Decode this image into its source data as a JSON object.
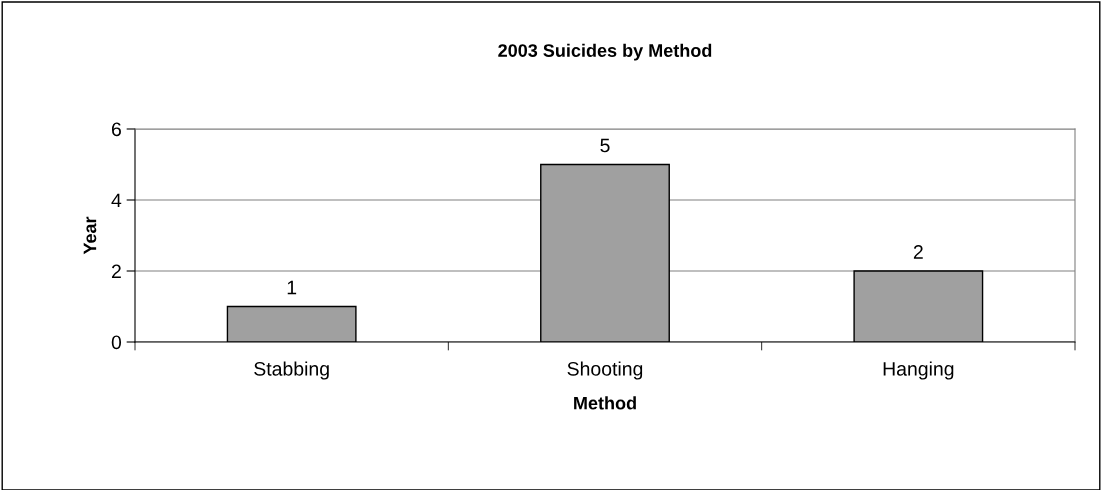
{
  "chart_data": {
    "type": "bar",
    "title": "2003 Suicides by Method",
    "xlabel": "Method",
    "ylabel": "Year",
    "categories": [
      "Stabbing",
      "Shooting",
      "Hanging"
    ],
    "values": [
      1,
      5,
      2
    ],
    "color": "#a0a0a0",
    "ylim": [
      0,
      6
    ],
    "yticks": [
      0,
      2,
      4,
      6
    ],
    "grid": "y",
    "data_labels": true
  }
}
